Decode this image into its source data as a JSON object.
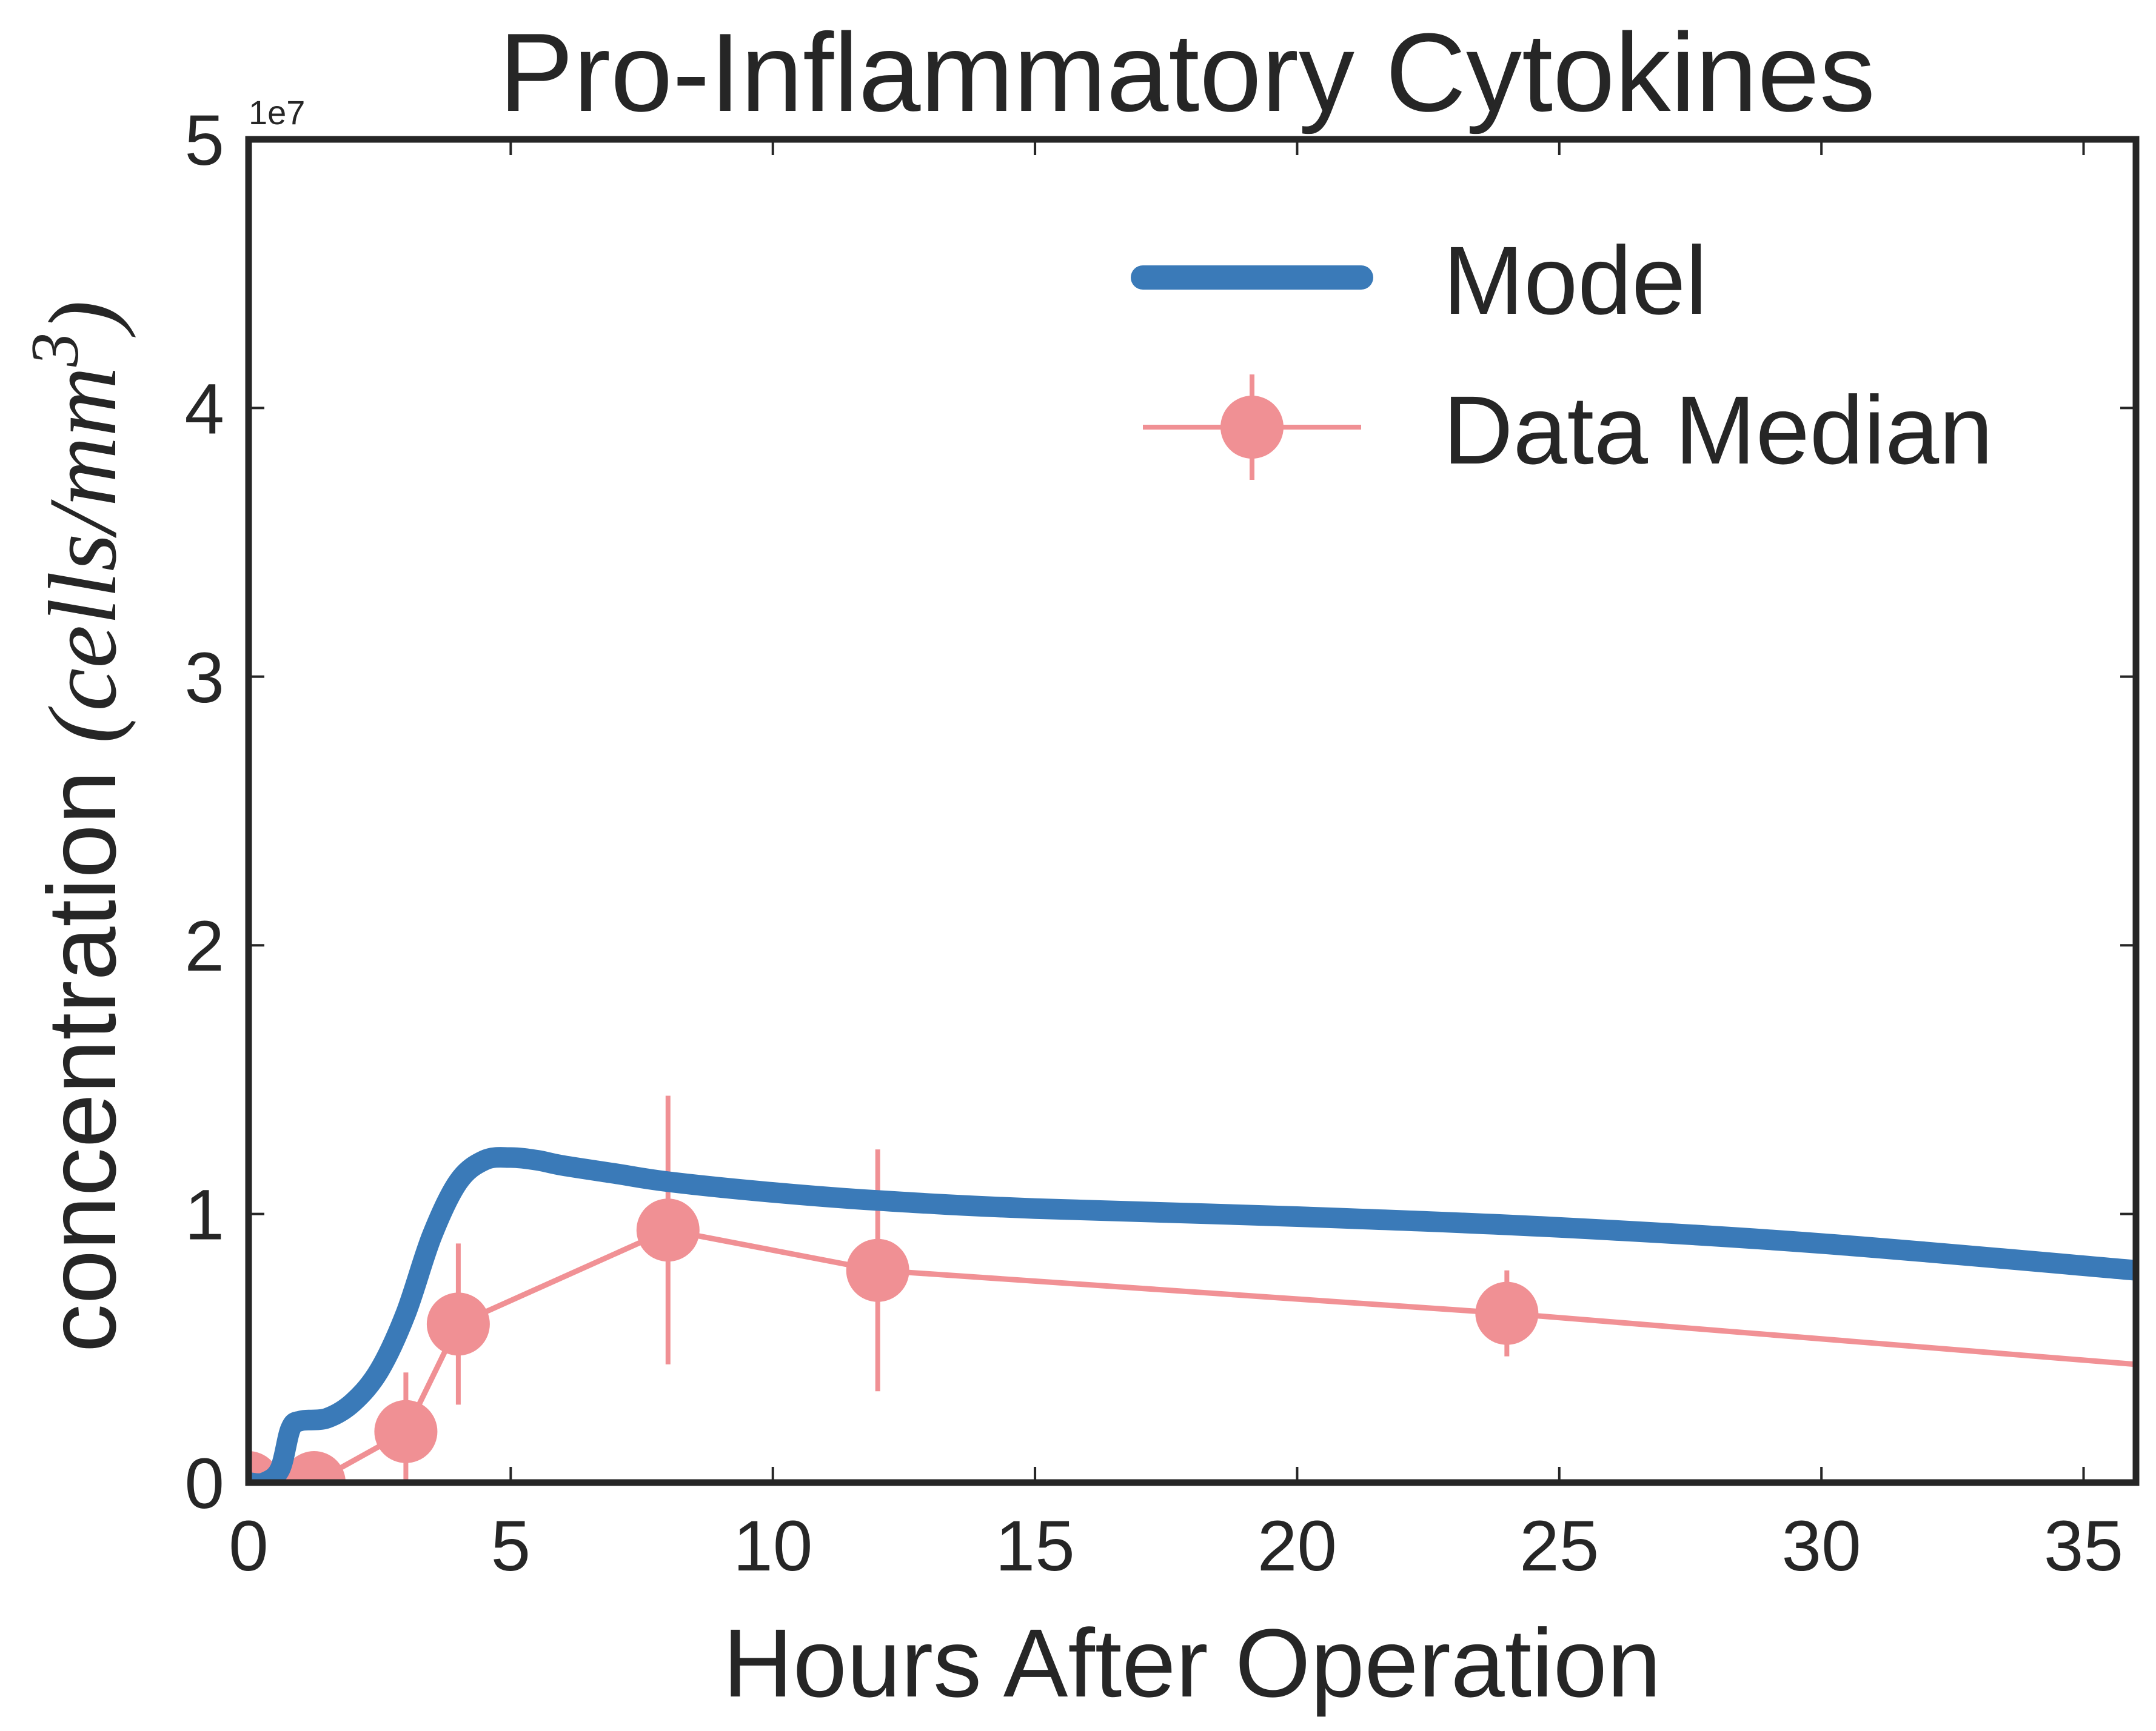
{
  "chart_data": {
    "type": "line",
    "title": "Pro-Inflammatory Cytokines",
    "xlabel": "Hours After Operation",
    "ylabel": {
      "prefix": "concentration ",
      "open": "(",
      "unit_main": "cells/mm",
      "unit_exp": "3",
      "close": ")"
    },
    "y_offset_label": "1e7",
    "xlim": [
      0,
      36
    ],
    "ylim": [
      0,
      5
    ],
    "x_ticks": [
      0,
      5,
      10,
      15,
      20,
      25,
      30,
      35
    ],
    "x_tick_labels": [
      "0",
      "5",
      "10",
      "15",
      "20",
      "25",
      "30",
      "35"
    ],
    "y_ticks": [
      0,
      1,
      2,
      3,
      4,
      5
    ],
    "y_tick_labels": [
      "0",
      "1",
      "2",
      "3",
      "4",
      "5"
    ],
    "grid": false,
    "legend_position": "top-right",
    "series": [
      {
        "name": "Model",
        "kind": "line",
        "color": "#3a7ab8",
        "x": [
          0.0,
          0.3,
          0.6,
          0.8,
          1.0,
          1.5,
          2.0,
          2.5,
          3.0,
          3.5,
          4.0,
          4.5,
          5.0,
          5.5,
          6.0,
          7.0,
          8.0,
          10.0,
          12.0,
          15.0,
          20.0,
          25.0,
          30.0,
          36.0
        ],
        "y": [
          0.0,
          0.0,
          0.05,
          0.2,
          0.23,
          0.24,
          0.3,
          0.42,
          0.63,
          0.92,
          1.12,
          1.2,
          1.21,
          1.2,
          1.18,
          1.15,
          1.12,
          1.08,
          1.05,
          1.02,
          0.99,
          0.95,
          0.89,
          0.79
        ]
      },
      {
        "name": "Data Median",
        "kind": "errorbar",
        "color": "#ef8589",
        "x": [
          0,
          1.25,
          3,
          4,
          8,
          12,
          24,
          36
        ],
        "y": [
          0.0,
          0.0,
          0.19,
          0.59,
          0.94,
          0.79,
          0.63,
          0.44
        ],
        "yerr": [
          0,
          0,
          0.22,
          0.3,
          0.5,
          0.45,
          0.16,
          0
        ],
        "markers": [
          true,
          true,
          true,
          true,
          true,
          true,
          true,
          false
        ]
      }
    ]
  }
}
